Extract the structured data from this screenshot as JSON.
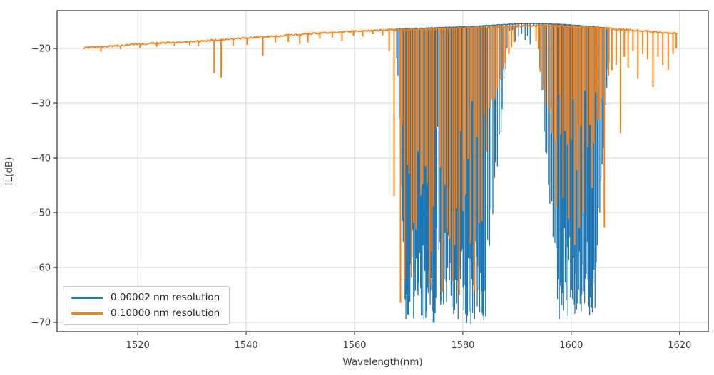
{
  "figure": {
    "background": "#ffffff"
  },
  "chart_data": {
    "type": "line",
    "title": "",
    "xlabel": "Wavelength(nm)",
    "ylabel": "IL(dB)",
    "xlim": [
      1505.1,
      1625.3
    ],
    "ylim": [
      -71.7,
      -13.1
    ],
    "grid": true,
    "grid_color": "#d9d9d9",
    "axis_color": "#3c3c3c",
    "xticks": [
      {
        "value": 1520,
        "label": "1520"
      },
      {
        "value": 1540,
        "label": "1540"
      },
      {
        "value": 1560,
        "label": "1560"
      },
      {
        "value": 1580,
        "label": "1580"
      },
      {
        "value": 1600,
        "label": "1600"
      },
      {
        "value": 1620,
        "label": "1620"
      }
    ],
    "yticks": [
      {
        "value": -20,
        "label": "−20"
      },
      {
        "value": -30,
        "label": "−30"
      },
      {
        "value": -40,
        "label": "−40"
      },
      {
        "value": -50,
        "label": "−50"
      },
      {
        "value": -60,
        "label": "−60"
      },
      {
        "value": -70,
        "label": "−70"
      }
    ],
    "legend": {
      "position": "lower left"
    },
    "series": [
      {
        "name": "0.00002 nm resolution",
        "color": "#1f77b4",
        "x_range": [
          1567.5,
          1607.1
        ],
        "noise_db": 0.12,
        "baseline_width": 1.3,
        "line_width": 1.3,
        "baseline": [
          [
            1567.5,
            -16.45
          ],
          [
            1572,
            -16.3
          ],
          [
            1578,
            -16.1
          ],
          [
            1583,
            -15.9
          ],
          [
            1588,
            -15.6
          ],
          [
            1592,
            -15.45
          ],
          [
            1596,
            -15.5
          ],
          [
            1600,
            -15.7
          ],
          [
            1604,
            -16.0
          ],
          [
            1607.1,
            -16.3
          ]
        ],
        "bands": [
          {
            "type": "taper",
            "range": [
              1567.8,
              1569.3
            ],
            "spacing": 0.2,
            "from": -20,
            "to": -64
          },
          {
            "type": "dense",
            "range": [
              1569.3,
              1575.2
            ],
            "spacing": 0.16,
            "depth_min": -69.5,
            "depth_max": -52,
            "bias": 2.2
          },
          {
            "type": "dense",
            "range": [
              1575.2,
              1575.9
            ],
            "spacing": 0.2,
            "depth_min": -56,
            "depth_max": -34,
            "bias": 1.0
          },
          {
            "type": "dense",
            "range": [
              1575.9,
              1584.3
            ],
            "spacing": 0.16,
            "depth_min": -69.5,
            "depth_max": -52,
            "bias": 2.2
          },
          {
            "type": "taper",
            "range": [
              1584.3,
              1588.6
            ],
            "spacing": 0.3,
            "from": -60,
            "to": -17
          },
          {
            "type": "dense",
            "range": [
              1588.6,
              1593.6
            ],
            "spacing": 0.55,
            "depth_min": -18.5,
            "depth_max": -16.2,
            "bias": 1.0
          },
          {
            "type": "taper",
            "range": [
              1593.6,
              1597.5
            ],
            "spacing": 0.28,
            "from": -17,
            "to": -62
          },
          {
            "type": "dense",
            "range": [
              1597.5,
              1604.6
            ],
            "spacing": 0.16,
            "depth_min": -68.5,
            "depth_max": -52,
            "bias": 2.2
          },
          {
            "type": "taper",
            "range": [
              1604.6,
              1607.1
            ],
            "spacing": 0.22,
            "from": -58,
            "to": -19
          }
        ],
        "isolated_dips": []
      },
      {
        "name": "0.10000 nm resolution",
        "color": "#ff7f0e",
        "x_range": [
          1510.0,
          1619.6
        ],
        "noise_db": 0.35,
        "baseline_width": 1.5,
        "line_width": 2.0,
        "baseline": [
          [
            1510,
            -19.9
          ],
          [
            1516,
            -19.5
          ],
          [
            1522,
            -19.1
          ],
          [
            1528,
            -18.85
          ],
          [
            1534,
            -18.5
          ],
          [
            1540,
            -18.1
          ],
          [
            1546,
            -17.7
          ],
          [
            1552,
            -17.3
          ],
          [
            1558,
            -16.95
          ],
          [
            1564,
            -16.7
          ],
          [
            1570,
            -16.55
          ],
          [
            1576,
            -16.4
          ],
          [
            1582,
            -16.2
          ],
          [
            1588,
            -16.0
          ],
          [
            1592,
            -15.85
          ],
          [
            1596,
            -15.8
          ],
          [
            1600,
            -15.95
          ],
          [
            1604,
            -16.15
          ],
          [
            1608,
            -16.45
          ],
          [
            1612,
            -16.7
          ],
          [
            1616,
            -17.0
          ],
          [
            1619.6,
            -17.3
          ]
        ],
        "bands": [
          {
            "type": "dense",
            "range": [
              1568.4,
              1575.2
            ],
            "spacing": 0.42,
            "depth_min": -67,
            "depth_max": -26,
            "bias": 1.2
          },
          {
            "type": "dense",
            "range": [
              1575.9,
              1584.4
            ],
            "spacing": 0.42,
            "depth_min": -67,
            "depth_max": -26,
            "bias": 1.2
          },
          {
            "type": "taper",
            "range": [
              1584.4,
              1589.6
            ],
            "spacing": 0.5,
            "from": -33,
            "to": -18
          },
          {
            "type": "taper",
            "range": [
              1593.4,
              1597.3
            ],
            "spacing": 0.5,
            "from": -18.5,
            "to": -40
          },
          {
            "type": "dense",
            "range": [
              1597.3,
              1606.3
            ],
            "spacing": 0.38,
            "depth_min": -58,
            "depth_max": -22,
            "bias": 0.9
          }
        ],
        "isolated_dips": [
          [
            1513.2,
            -20.6
          ],
          [
            1516.8,
            -20.1
          ],
          [
            1520.4,
            -19.9
          ],
          [
            1523.5,
            -19.7
          ],
          [
            1526.8,
            -19.5
          ],
          [
            1529.6,
            -19.4
          ],
          [
            1531.2,
            -19.6
          ],
          [
            1534.1,
            -24.5
          ],
          [
            1535.4,
            -25.3
          ],
          [
            1537.6,
            -19.6
          ],
          [
            1540.2,
            -19.3
          ],
          [
            1543.1,
            -21.3
          ],
          [
            1545.4,
            -18.9
          ],
          [
            1547.8,
            -18.8
          ],
          [
            1549.9,
            -19.2
          ],
          [
            1551.4,
            -18.9
          ],
          [
            1553.6,
            -18.2
          ],
          [
            1555.9,
            -18.0
          ],
          [
            1557.7,
            -18.6
          ],
          [
            1559.8,
            -17.7
          ],
          [
            1561.5,
            -17.8
          ],
          [
            1563.4,
            -17.4
          ],
          [
            1565.2,
            -17.6
          ],
          [
            1566.4,
            -20.5
          ],
          [
            1567.3,
            -47.0
          ],
          [
            1606.9,
            -25.0
          ],
          [
            1607.5,
            -24.0
          ],
          [
            1608.3,
            -23.0
          ],
          [
            1609.1,
            -35.5
          ],
          [
            1609.8,
            -21.5
          ],
          [
            1610.5,
            -23.5
          ],
          [
            1611.4,
            -20.5
          ],
          [
            1612.3,
            -25.5
          ],
          [
            1613.2,
            -21.0
          ],
          [
            1614.1,
            -22.0
          ],
          [
            1615.1,
            -27.0
          ],
          [
            1616.0,
            -21.5
          ],
          [
            1616.9,
            -23.0
          ],
          [
            1617.9,
            -24.0
          ],
          [
            1618.8,
            -21.0
          ],
          [
            1619.4,
            -20.0
          ]
        ]
      }
    ]
  }
}
